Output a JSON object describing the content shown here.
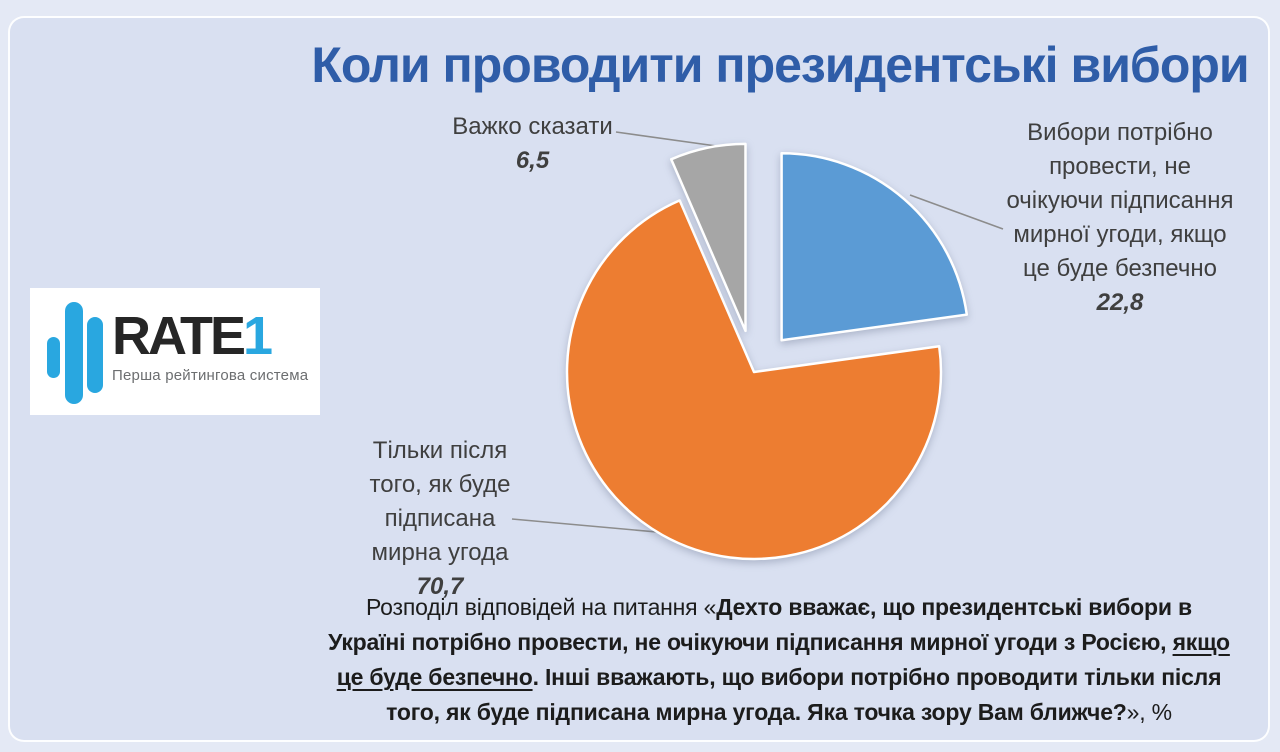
{
  "title": "Коли проводити президентські вибори",
  "colors": {
    "stage_bg": "#e4e9f5",
    "panel_bg": "#d9e0f1",
    "title": "#2f5da8",
    "label": "#3f3f3f",
    "caption": "#1c1c1c",
    "leader": "#8c8c8c",
    "logo_blue": "#29a7e0"
  },
  "logo": {
    "brand": "RATE",
    "brand_accent": "1",
    "tagline": "Перша рейтингова система"
  },
  "chart_data": {
    "type": "pie",
    "title": "Коли проводити президентські вибори",
    "unit": "%",
    "start_angle_deg": 0,
    "direction": "clockwise",
    "exploded_slices": [
      "Вибори потрібно провести, не очікуючи підписання мирної угоди, якщо це буде безпечно",
      "Важко сказати"
    ],
    "slices": [
      {
        "label": "Вибори потрібно провести, не очікуючи підписання мирної угоди, якщо це буде безпечно",
        "value": 22.8,
        "display_value": "22,8",
        "color": "#5b9bd5"
      },
      {
        "label": "Тільки після того, як буде підписана мирна угода",
        "value": 70.7,
        "display_value": "70,7",
        "color": "#ed7d31"
      },
      {
        "label": "Важко сказати",
        "value": 6.5,
        "display_value": "6,5",
        "color": "#a6a6a6"
      }
    ]
  },
  "labels": {
    "top": {
      "lines": [
        "Важко сказати"
      ],
      "value": "6,5"
    },
    "right": {
      "lines": [
        "Вибори потрібно",
        "провести, не",
        "очікуючи підписання",
        "мирної угоди, якщо",
        "це буде безпечно"
      ],
      "value": "22,8"
    },
    "left": {
      "lines": [
        "Тільки після",
        "того, як буде",
        "підписана",
        "мирна угода"
      ],
      "value": "70,7"
    }
  },
  "caption": {
    "lines": [
      [
        {
          "text": "Розподіл відповідей на питання «",
          "bold": false
        },
        {
          "text": "Дехто вважає, що президентські вибори в",
          "bold": true
        }
      ],
      [
        {
          "text": "Україні потрібно провести, не очікуючи підписання мирної угоди з Росією, ",
          "bold": true
        },
        {
          "text": "якщо",
          "bold": true,
          "underline": true
        }
      ],
      [
        {
          "text": "це буде безпечно",
          "bold": true,
          "underline": true
        },
        {
          "text": ".  Інші вважають, що вибори потрібно проводити тільки після",
          "bold": true
        }
      ],
      [
        {
          "text": "того, як буде підписана мирна угода. Яка точка зору Вам ближче?",
          "bold": true
        },
        {
          "text": "», %",
          "bold": false
        }
      ]
    ]
  }
}
